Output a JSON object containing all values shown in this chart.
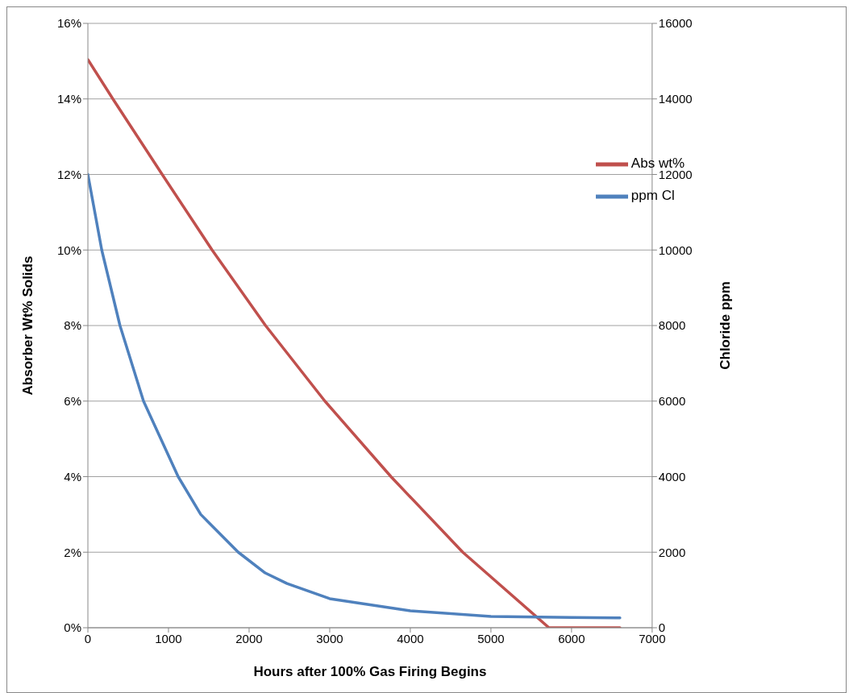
{
  "chart_data": {
    "type": "line",
    "xlabel": "Hours after 100% Gas Firing Begins",
    "ylabel": "Absorber Wt% Solids",
    "y2label": "Chloride ppm",
    "xlim": [
      0,
      7000
    ],
    "xticks": [
      0,
      1000,
      2000,
      3000,
      4000,
      5000,
      6000,
      7000
    ],
    "ylim": [
      0,
      16
    ],
    "yticks": [
      {
        "value": 0,
        "label": "0%"
      },
      {
        "value": 2,
        "label": "2%"
      },
      {
        "value": 4,
        "label": "4%"
      },
      {
        "value": 6,
        "label": "6%"
      },
      {
        "value": 8,
        "label": "8%"
      },
      {
        "value": 10,
        "label": "10%"
      },
      {
        "value": 12,
        "label": "12%"
      },
      {
        "value": 14,
        "label": "14%"
      },
      {
        "value": 16,
        "label": "16%"
      }
    ],
    "y2lim": [
      0,
      16000
    ],
    "y2ticks": [
      0,
      2000,
      4000,
      6000,
      8000,
      10000,
      12000,
      14000,
      16000
    ],
    "grid": "y",
    "legend": "top right",
    "series": [
      {
        "name": "Abs wt%",
        "color": "#c0504d",
        "x": [
          0,
          310,
          922,
          1541,
          2204,
          2940,
          3760,
          4650,
          5720,
          6600
        ],
        "values": [
          15.04,
          14,
          12,
          10,
          8,
          6,
          4,
          2,
          0,
          0
        ]
      },
      {
        "name": "ppm Cl",
        "color": "#4f81bd",
        "axis": "y2",
        "x": [
          0,
          172,
          398,
          690,
          1120,
          1400,
          1865,
          2200,
          2470,
          3000,
          4000,
          5000,
          6000,
          6600
        ],
        "values": [
          12000,
          10000,
          8000,
          6000,
          4000,
          3000,
          2000,
          1450,
          1170,
          770,
          450,
          300,
          270,
          260
        ]
      }
    ]
  }
}
